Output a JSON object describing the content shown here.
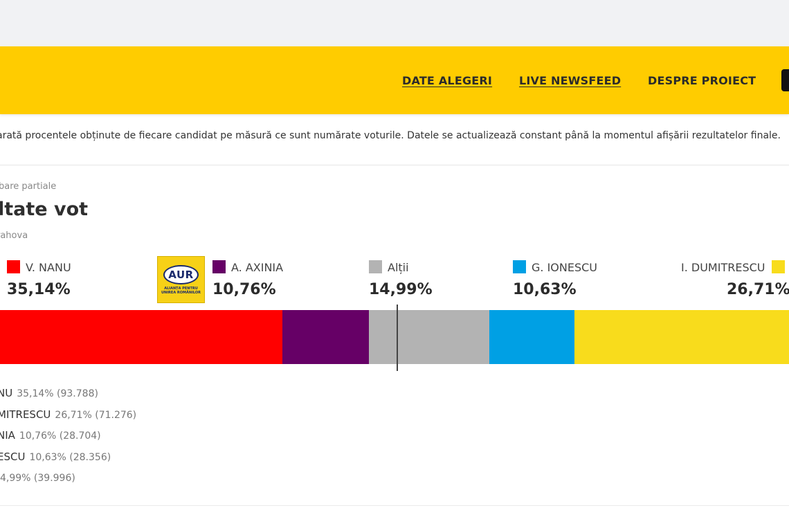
{
  "nav": {
    "links": [
      "DATE ALEGERI",
      "LIVE NEWSFEED",
      "DESPRE PROIECT"
    ]
  },
  "intro_text": "arată procentele obținute de fiecare candidat pe măsură ce sunt numărate voturile. Datele se actualizează constant până la momentul afișării rezultatelor finale.",
  "status_label": "bare partiale",
  "title": "ltate vot",
  "region": "rahova",
  "candidates": [
    {
      "name": "V. NANU",
      "pct": "35,14%",
      "color": "#ff0000",
      "fraction": 0.3514
    },
    {
      "name": "A. AXINIA",
      "pct": "10,76%",
      "color": "#660066",
      "fraction": 0.1076
    },
    {
      "name": "Alții",
      "pct": "14,99%",
      "color": "#b3b3b3",
      "fraction": 0.1499
    },
    {
      "name": "G. IONESCU",
      "pct": "10,63%",
      "color": "#00a0e4",
      "fraction": 0.1063
    },
    {
      "name": "I. DUMITRESCU",
      "pct": "26,71%",
      "color": "#f8dc1c",
      "fraction": 0.2671
    }
  ],
  "aur_logo": {
    "text": "AUR",
    "subtitle": "ALIANȚA PENTRU UNIREA ROMÂNILOR"
  },
  "results_list": [
    {
      "name": "NU",
      "value": "35,14% (93.788)"
    },
    {
      "name": "MITRESCU",
      "value": "26,71% (71.276)"
    },
    {
      "name": "NIA",
      "value": "10,76% (28.704)"
    },
    {
      "name": "ESCU",
      "value": "10,63% (28.356)"
    },
    {
      "name": "",
      "value": "4,99% (39.996)"
    }
  ]
}
